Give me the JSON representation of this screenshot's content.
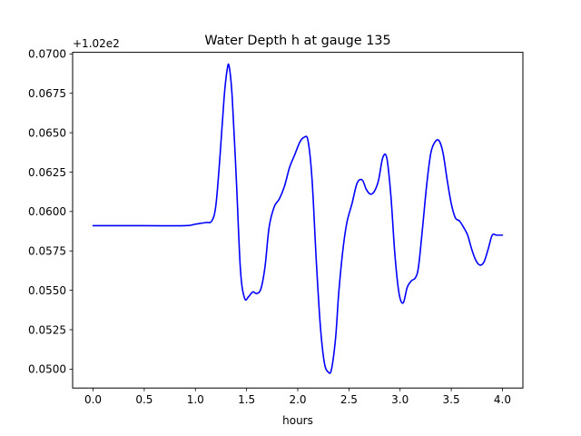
{
  "chart_data": {
    "type": "line",
    "title": "Water Depth h at gauge 135",
    "xlabel": "hours",
    "ylabel": "",
    "y_offset_label": "+1.02e2",
    "xlim": [
      -0.2,
      4.2
    ],
    "ylim": [
      0.0488,
      0.0701
    ],
    "x_ticks": [
      0.0,
      0.5,
      1.0,
      1.5,
      2.0,
      2.5,
      3.0,
      3.5,
      4.0
    ],
    "x_tick_labels": [
      "0.0",
      "0.5",
      "1.0",
      "1.5",
      "2.0",
      "2.5",
      "3.0",
      "3.5",
      "4.0"
    ],
    "y_ticks": [
      0.05,
      0.0525,
      0.055,
      0.0575,
      0.06,
      0.0625,
      0.065,
      0.0675,
      0.07
    ],
    "y_tick_labels": [
      "0.0500",
      "0.0525",
      "0.0550",
      "0.0575",
      "0.0600",
      "0.0625",
      "0.0650",
      "0.0675",
      "0.0700"
    ],
    "grid": false,
    "series": [
      {
        "color": "#0000ff",
        "x": [
          0.0,
          0.5,
          0.9,
          1.0,
          1.1,
          1.16,
          1.2,
          1.24,
          1.28,
          1.31,
          1.33,
          1.36,
          1.4,
          1.44,
          1.48,
          1.52,
          1.56,
          1.6,
          1.64,
          1.68,
          1.72,
          1.77,
          1.82,
          1.87,
          1.92,
          1.97,
          2.02,
          2.06,
          2.1,
          2.14,
          2.18,
          2.22,
          2.26,
          2.3,
          2.33,
          2.37,
          2.4,
          2.44,
          2.48,
          2.53,
          2.58,
          2.63,
          2.67,
          2.71,
          2.75,
          2.79,
          2.83,
          2.87,
          2.91,
          2.95,
          2.99,
          3.03,
          3.07,
          3.11,
          3.15,
          3.18,
          3.22,
          3.26,
          3.3,
          3.34,
          3.38,
          3.42,
          3.46,
          3.5,
          3.54,
          3.58,
          3.62,
          3.66,
          3.7,
          3.74,
          3.78,
          3.82,
          3.86,
          3.9,
          3.94,
          3.98,
          4.0
        ],
        "y": [
          0.0591,
          0.0591,
          0.0591,
          0.0592,
          0.0593,
          0.0594,
          0.0604,
          0.0635,
          0.0672,
          0.069,
          0.0692,
          0.0672,
          0.062,
          0.0563,
          0.0545,
          0.0546,
          0.0549,
          0.0548,
          0.0551,
          0.0565,
          0.059,
          0.0603,
          0.0608,
          0.0616,
          0.0628,
          0.0636,
          0.0644,
          0.0647,
          0.0645,
          0.062,
          0.057,
          0.0528,
          0.0504,
          0.0498,
          0.05,
          0.052,
          0.0548,
          0.0575,
          0.0593,
          0.0605,
          0.0618,
          0.062,
          0.0614,
          0.0611,
          0.0613,
          0.062,
          0.0634,
          0.0634,
          0.061,
          0.0572,
          0.0548,
          0.0542,
          0.0552,
          0.0556,
          0.0558,
          0.0565,
          0.059,
          0.0617,
          0.0637,
          0.0644,
          0.0645,
          0.0637,
          0.062,
          0.0605,
          0.0596,
          0.0594,
          0.059,
          0.0585,
          0.0576,
          0.0569,
          0.0566,
          0.0568,
          0.0576,
          0.0585,
          0.0585,
          0.0585,
          0.0585
        ]
      }
    ]
  }
}
